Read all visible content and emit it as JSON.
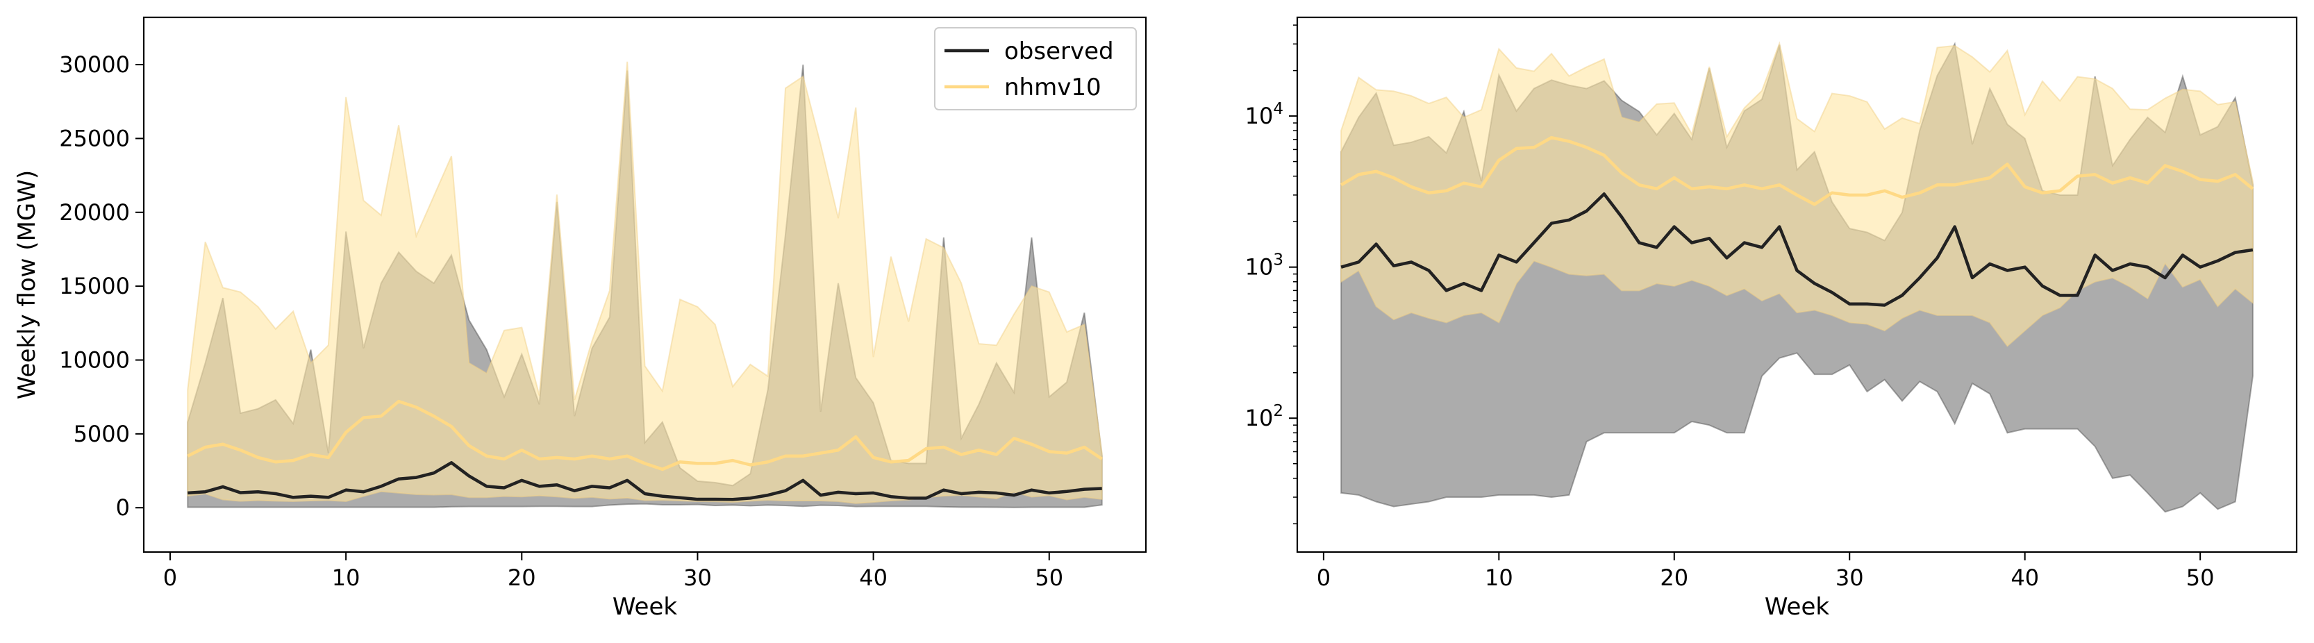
{
  "figure": {
    "colors": {
      "observed_line": "#222222",
      "observed_fill": "#7f7f7f",
      "model_line": "#ffd985",
      "model_fill": "#ffe6a3"
    },
    "legend": {
      "observed": "observed",
      "model": "nhmv10",
      "placement": "upper-right"
    }
  },
  "chart_data": [
    {
      "type": "area",
      "yscale": "linear",
      "xlabel": "Week",
      "ylabel": "Weekly flow (MGW)",
      "xlim": [
        -1.5,
        55.5
      ],
      "ylim": [
        -3000,
        33200
      ],
      "xticks": [
        0,
        10,
        20,
        30,
        40,
        50
      ],
      "yticks": [
        0,
        5000,
        10000,
        15000,
        20000,
        25000,
        30000
      ],
      "x": [
        1,
        2,
        3,
        4,
        5,
        6,
        7,
        8,
        9,
        10,
        11,
        12,
        13,
        14,
        15,
        16,
        17,
        18,
        19,
        20,
        21,
        22,
        23,
        24,
        25,
        26,
        27,
        28,
        29,
        30,
        31,
        32,
        33,
        34,
        35,
        36,
        37,
        38,
        39,
        40,
        41,
        42,
        43,
        44,
        45,
        46,
        47,
        48,
        49,
        50,
        51,
        52,
        53
      ],
      "legend": true,
      "series": [
        {
          "name": "observed",
          "median": [
            1000,
            1080,
            1420,
            1020,
            1080,
            950,
            700,
            780,
            700,
            1200,
            1080,
            1450,
            1950,
            2050,
            2350,
            3050,
            2150,
            1450,
            1350,
            1850,
            1450,
            1550,
            1150,
            1450,
            1350,
            1850,
            950,
            780,
            680,
            570,
            570,
            560,
            650,
            850,
            1150,
            1850,
            850,
            1050,
            950,
            1000,
            750,
            650,
            650,
            1200,
            950,
            1050,
            1000,
            850,
            1200,
            1000,
            1100,
            1250,
            1300
          ],
          "min": [
            30,
            30,
            30,
            30,
            30,
            30,
            30,
            30,
            30,
            30,
            30,
            30,
            30,
            30,
            30,
            70,
            80,
            80,
            80,
            80,
            90,
            90,
            80,
            80,
            180,
            240,
            260,
            200,
            200,
            220,
            150,
            180,
            130,
            180,
            150,
            90,
            170,
            150,
            80,
            90,
            90,
            90,
            90,
            60,
            40,
            40,
            30,
            20,
            30,
            30,
            30,
            30,
            190
          ],
          "max": [
            5800,
            9800,
            14200,
            6400,
            6700,
            7300,
            5700,
            10700,
            3700,
            18700,
            10800,
            15200,
            17300,
            16000,
            15200,
            17100,
            12700,
            10700,
            7500,
            10400,
            7000,
            20700,
            6200,
            10800,
            12900,
            29600,
            4400,
            5800,
            2700,
            1800,
            1700,
            1500,
            2300,
            8000,
            18500,
            30000,
            6500,
            15200,
            8800,
            7100,
            3200,
            3000,
            3000,
            18300,
            4700,
            7000,
            9800,
            7800,
            18300,
            7500,
            8500,
            13200,
            3500
          ]
        },
        {
          "name": "nhmv10",
          "median": [
            3500,
            4100,
            4300,
            3900,
            3400,
            3100,
            3200,
            3600,
            3400,
            5100,
            6100,
            6200,
            7200,
            6800,
            6200,
            5500,
            4200,
            3500,
            3300,
            3900,
            3300,
            3400,
            3300,
            3500,
            3300,
            3500,
            3000,
            2600,
            3100,
            3000,
            3000,
            3200,
            2900,
            3100,
            3500,
            3500,
            3700,
            3900,
            4800,
            3400,
            3100,
            3200,
            4000,
            4100,
            3600,
            3900,
            3600,
            4700,
            4300,
            3800,
            3700,
            4100,
            3300
          ],
          "min": [
            800,
            950,
            550,
            450,
            500,
            460,
            430,
            480,
            500,
            430,
            780,
            1100,
            1000,
            900,
            880,
            900,
            700,
            700,
            780,
            750,
            820,
            750,
            650,
            720,
            600,
            670,
            500,
            520,
            480,
            430,
            420,
            380,
            460,
            520,
            480,
            480,
            480,
            430,
            300,
            380,
            480,
            540,
            700,
            800,
            850,
            740,
            620,
            1060,
            740,
            830,
            550,
            720,
            580
          ],
          "max": [
            8000,
            18000,
            14900,
            14600,
            13600,
            12100,
            13300,
            9800,
            11000,
            27800,
            20800,
            19800,
            25900,
            18400,
            21100,
            23800,
            9800,
            9100,
            12000,
            12200,
            7600,
            21200,
            7300,
            11300,
            14700,
            30200,
            9600,
            7900,
            14100,
            13600,
            12400,
            8200,
            9700,
            8900,
            28400,
            29200,
            24600,
            19600,
            27100,
            10200,
            17000,
            12600,
            18200,
            17600,
            15200,
            11100,
            11000,
            13100,
            15000,
            14600,
            11900,
            12400,
            3700
          ]
        }
      ]
    },
    {
      "type": "area",
      "yscale": "log",
      "xlabel": "Week",
      "ylabel": "",
      "xlim": [
        -1.5,
        55.5
      ],
      "ylim": [
        13,
        45000
      ],
      "xticks": [
        0,
        10,
        20,
        30,
        40,
        50
      ],
      "yticks": [
        100,
        1000,
        10000
      ],
      "ytick_labels": [
        [
          "10",
          "2"
        ],
        [
          "10",
          "3"
        ],
        [
          "10",
          "4"
        ]
      ],
      "x": [
        1,
        2,
        3,
        4,
        5,
        6,
        7,
        8,
        9,
        10,
        11,
        12,
        13,
        14,
        15,
        16,
        17,
        18,
        19,
        20,
        21,
        22,
        23,
        24,
        25,
        26,
        27,
        28,
        29,
        30,
        31,
        32,
        33,
        34,
        35,
        36,
        37,
        38,
        39,
        40,
        41,
        42,
        43,
        44,
        45,
        46,
        47,
        48,
        49,
        50,
        51,
        52,
        53
      ],
      "legend": false,
      "series": [
        {
          "name": "observed",
          "median": [
            1000,
            1080,
            1420,
            1020,
            1080,
            950,
            700,
            780,
            700,
            1200,
            1080,
            1450,
            1950,
            2050,
            2350,
            3050,
            2150,
            1450,
            1350,
            1850,
            1450,
            1550,
            1150,
            1450,
            1350,
            1850,
            950,
            780,
            680,
            570,
            570,
            560,
            650,
            850,
            1150,
            1850,
            850,
            1050,
            950,
            1000,
            750,
            650,
            650,
            1200,
            950,
            1050,
            1000,
            850,
            1200,
            1000,
            1100,
            1250,
            1300
          ],
          "min": [
            32,
            31,
            28,
            26,
            27,
            28,
            30,
            30,
            30,
            31,
            31,
            31,
            30,
            31,
            70,
            80,
            80,
            80,
            80,
            80,
            95,
            90,
            80,
            80,
            190,
            250,
            270,
            195,
            195,
            225,
            150,
            180,
            130,
            175,
            150,
            92,
            170,
            145,
            80,
            85,
            85,
            85,
            85,
            65,
            40,
            42,
            32,
            24,
            26,
            32,
            25,
            28,
            190
          ],
          "max": [
            5800,
            9800,
            14200,
            6400,
            6700,
            7300,
            5700,
            10700,
            3700,
            18700,
            10800,
            15200,
            17300,
            16000,
            15200,
            17100,
            12700,
            10700,
            7500,
            10400,
            7000,
            20700,
            6200,
            10800,
            12900,
            29600,
            4400,
            5800,
            2700,
            1800,
            1700,
            1500,
            2300,
            8000,
            18500,
            30000,
            6500,
            15200,
            8800,
            7100,
            3200,
            3000,
            3000,
            18300,
            4700,
            7000,
            9800,
            7800,
            18300,
            7500,
            8500,
            13200,
            3500
          ]
        },
        {
          "name": "nhmv10",
          "median": [
            3500,
            4100,
            4300,
            3900,
            3400,
            3100,
            3200,
            3600,
            3400,
            5100,
            6100,
            6200,
            7200,
            6800,
            6200,
            5500,
            4200,
            3500,
            3300,
            3900,
            3300,
            3400,
            3300,
            3500,
            3300,
            3500,
            3000,
            2600,
            3100,
            3000,
            3000,
            3200,
            2900,
            3100,
            3500,
            3500,
            3700,
            3900,
            4800,
            3400,
            3100,
            3200,
            4000,
            4100,
            3600,
            3900,
            3600,
            4700,
            4300,
            3800,
            3700,
            4100,
            3300
          ],
          "min": [
            800,
            950,
            550,
            450,
            500,
            460,
            430,
            480,
            500,
            430,
            780,
            1100,
            1000,
            900,
            880,
            900,
            700,
            700,
            780,
            750,
            820,
            750,
            650,
            720,
            600,
            670,
            500,
            520,
            480,
            430,
            420,
            380,
            460,
            520,
            480,
            480,
            480,
            430,
            300,
            380,
            480,
            540,
            700,
            800,
            850,
            740,
            620,
            1060,
            740,
            830,
            550,
            720,
            580
          ],
          "max": [
            8000,
            18000,
            14900,
            14600,
            13600,
            12100,
            13300,
            9800,
            11000,
            27800,
            20800,
            19800,
            25900,
            18400,
            21100,
            23800,
            9800,
            9100,
            12000,
            12200,
            7600,
            21200,
            7300,
            11300,
            14700,
            30200,
            9600,
            7900,
            14100,
            13600,
            12400,
            8200,
            9700,
            8900,
            28400,
            29200,
            24600,
            19600,
            27100,
            10200,
            17000,
            12600,
            18200,
            17600,
            15200,
            11100,
            11000,
            13100,
            15000,
            14600,
            11900,
            12400,
            3700
          ]
        }
      ]
    }
  ]
}
